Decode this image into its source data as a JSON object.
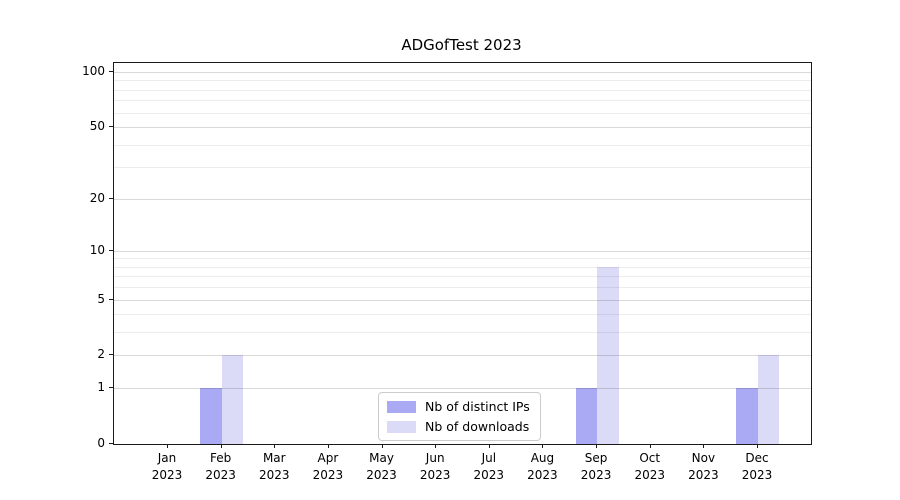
{
  "chart_data": {
    "type": "bar",
    "title": "ADGofTest 2023",
    "categories": [
      "Jan 2023",
      "Feb 2023",
      "Mar 2023",
      "Apr 2023",
      "May 2023",
      "Jun 2023",
      "Jul 2023",
      "Aug 2023",
      "Sep 2023",
      "Oct 2023",
      "Nov 2023",
      "Dec 2023"
    ],
    "series": [
      {
        "name": "Nb of distinct IPs",
        "color": "#aaaaf4",
        "values": [
          0,
          1,
          0,
          0,
          0,
          0,
          0,
          0,
          1,
          0,
          0,
          1
        ]
      },
      {
        "name": "Nb of downloads",
        "color": "#dbdbf8",
        "values": [
          0,
          2,
          0,
          0,
          0,
          0,
          0,
          0,
          8,
          0,
          0,
          2
        ]
      }
    ],
    "yaxis": {
      "scale": "log10(1+v)",
      "ticks": [
        0,
        1,
        2,
        5,
        10,
        20,
        50,
        100
      ],
      "minor_gridlines": [
        3,
        4,
        6,
        7,
        8,
        9,
        30,
        40,
        60,
        70,
        80,
        90
      ],
      "range_max": 112
    },
    "xlabel": "",
    "ylabel": "",
    "grid": "horizontal",
    "legend_position": "bottom-center"
  }
}
